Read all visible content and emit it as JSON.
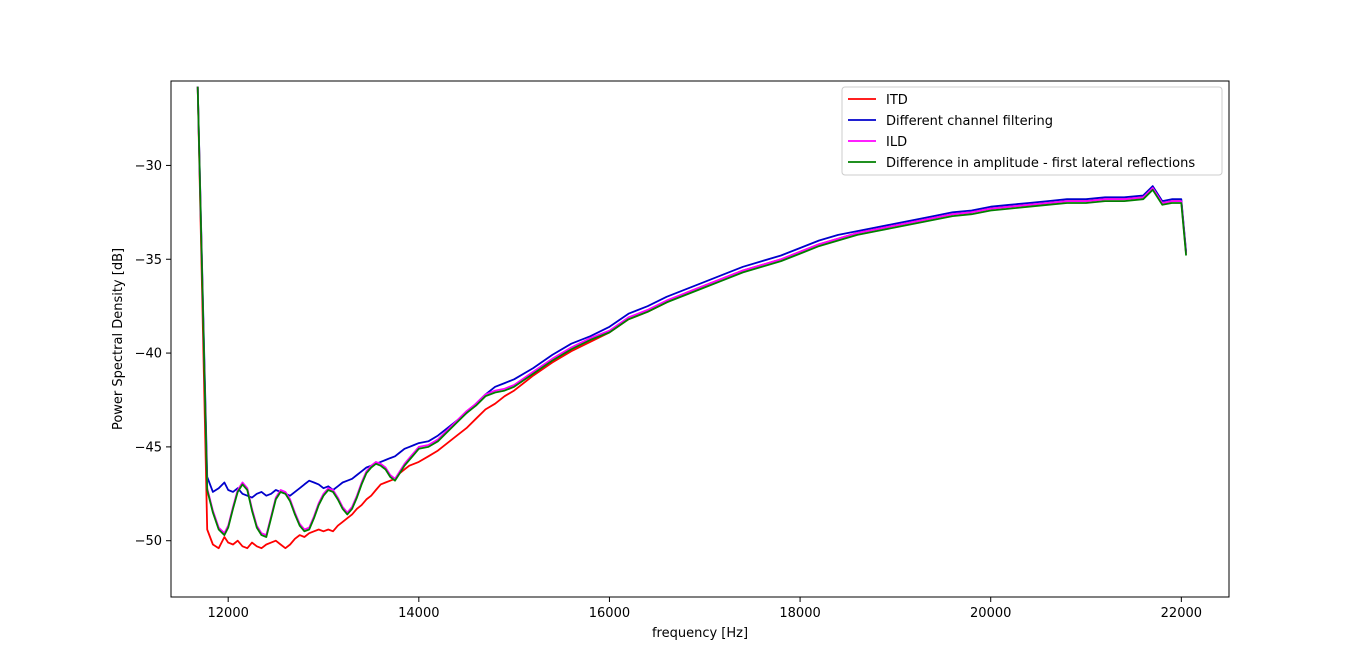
{
  "chart_data": {
    "type": "line",
    "title": "",
    "xlabel": "frequency [Hz]",
    "ylabel": "Power Spectral Density [dB]",
    "xlim": [
      11400,
      22500
    ],
    "ylim": [
      -53.0,
      -25.5
    ],
    "xticks": [
      12000,
      14000,
      16000,
      18000,
      20000,
      22000
    ],
    "yticks": [
      -50,
      -45,
      -40,
      -35,
      -30
    ],
    "xtick_labels": [
      "12000",
      "14000",
      "16000",
      "18000",
      "20000",
      "22000"
    ],
    "ytick_labels": [
      "−50",
      "−45",
      "−40",
      "−35",
      "−30"
    ],
    "grid": false,
    "legend_position": "top-right",
    "series": [
      {
        "name": "ITD",
        "color": "#ff0000",
        "x": [
          11680,
          11780,
          11840,
          11900,
          11960,
          12000,
          12050,
          12100,
          12150,
          12200,
          12250,
          12300,
          12350,
          12400,
          12450,
          12500,
          12550,
          12600,
          12650,
          12700,
          12750,
          12800,
          12850,
          12900,
          12950,
          13000,
          13050,
          13100,
          13150,
          13200,
          13250,
          13300,
          13350,
          13400,
          13450,
          13500,
          13550,
          13600,
          13650,
          13700,
          13750,
          13800,
          13850,
          13900,
          13950,
          14000,
          14100,
          14200,
          14300,
          14400,
          14500,
          14600,
          14700,
          14800,
          14900,
          15000,
          15200,
          15400,
          15600,
          15800,
          16000,
          16200,
          16400,
          16600,
          16800,
          17000,
          17200,
          17400,
          17600,
          17800,
          18000,
          18200,
          18400,
          18600,
          18800,
          19000,
          19200,
          19400,
          19600,
          19800,
          20000,
          20200,
          20400,
          20600,
          20800,
          21000,
          21200,
          21400,
          21600,
          21700,
          21800,
          21900,
          22000,
          22050
        ],
        "y": [
          -25.8,
          -49.4,
          -50.2,
          -50.4,
          -49.8,
          -50.1,
          -50.2,
          -50.0,
          -50.3,
          -50.4,
          -50.1,
          -50.3,
          -50.4,
          -50.2,
          -50.1,
          -50.0,
          -50.2,
          -50.4,
          -50.2,
          -49.9,
          -49.7,
          -49.8,
          -49.6,
          -49.5,
          -49.4,
          -49.5,
          -49.4,
          -49.5,
          -49.2,
          -49.0,
          -48.8,
          -48.6,
          -48.3,
          -48.1,
          -47.8,
          -47.6,
          -47.3,
          -47.0,
          -46.9,
          -46.8,
          -46.7,
          -46.4,
          -46.2,
          -46.0,
          -45.9,
          -45.8,
          -45.5,
          -45.2,
          -44.8,
          -44.4,
          -44.0,
          -43.5,
          -43.0,
          -42.7,
          -42.3,
          -42.0,
          -41.2,
          -40.5,
          -39.9,
          -39.4,
          -38.9,
          -38.2,
          -37.8,
          -37.3,
          -36.8,
          -36.4,
          -36.0,
          -35.6,
          -35.3,
          -35.0,
          -34.6,
          -34.2,
          -33.9,
          -33.6,
          -33.4,
          -33.2,
          -33.0,
          -32.8,
          -32.6,
          -32.5,
          -32.3,
          -32.2,
          -32.1,
          -32.0,
          -31.9,
          -31.9,
          -31.8,
          -31.8,
          -31.7,
          -31.2,
          -32.0,
          -31.9,
          -31.9,
          -34.7
        ]
      },
      {
        "name": "Different channel filtering",
        "color": "#0000cc",
        "x": [
          11680,
          11780,
          11840,
          11900,
          11960,
          12000,
          12050,
          12100,
          12150,
          12200,
          12250,
          12300,
          12350,
          12400,
          12450,
          12500,
          12550,
          12600,
          12650,
          12700,
          12750,
          12800,
          12850,
          12900,
          12950,
          13000,
          13050,
          13100,
          13150,
          13200,
          13250,
          13300,
          13350,
          13400,
          13450,
          13500,
          13550,
          13600,
          13650,
          13700,
          13750,
          13800,
          13850,
          13900,
          13950,
          14000,
          14100,
          14200,
          14300,
          14400,
          14500,
          14600,
          14700,
          14800,
          14900,
          15000,
          15200,
          15400,
          15600,
          15800,
          16000,
          16200,
          16400,
          16600,
          16800,
          17000,
          17200,
          17400,
          17600,
          17800,
          18000,
          18200,
          18400,
          18600,
          18800,
          19000,
          19200,
          19400,
          19600,
          19800,
          20000,
          20200,
          20400,
          20600,
          20800,
          21000,
          21200,
          21400,
          21600,
          21700,
          21800,
          21900,
          22000,
          22050
        ],
        "y": [
          -25.8,
          -46.6,
          -47.4,
          -47.2,
          -46.9,
          -47.3,
          -47.4,
          -47.2,
          -47.5,
          -47.6,
          -47.7,
          -47.5,
          -47.4,
          -47.6,
          -47.5,
          -47.3,
          -47.4,
          -47.5,
          -47.6,
          -47.4,
          -47.2,
          -47.0,
          -46.8,
          -46.9,
          -47.0,
          -47.2,
          -47.1,
          -47.3,
          -47.1,
          -46.9,
          -46.8,
          -46.7,
          -46.5,
          -46.3,
          -46.1,
          -46.0,
          -45.9,
          -45.8,
          -45.7,
          -45.6,
          -45.5,
          -45.3,
          -45.1,
          -45.0,
          -44.9,
          -44.8,
          -44.7,
          -44.4,
          -44.0,
          -43.6,
          -43.2,
          -42.7,
          -42.2,
          -41.8,
          -41.6,
          -41.4,
          -40.8,
          -40.1,
          -39.5,
          -39.1,
          -38.6,
          -37.9,
          -37.5,
          -37.0,
          -36.6,
          -36.2,
          -35.8,
          -35.4,
          -35.1,
          -34.8,
          -34.4,
          -34.0,
          -33.7,
          -33.5,
          -33.3,
          -33.1,
          -32.9,
          -32.7,
          -32.5,
          -32.4,
          -32.2,
          -32.1,
          -32.0,
          -31.9,
          -31.8,
          -31.8,
          -31.7,
          -31.7,
          -31.6,
          -31.1,
          -31.9,
          -31.8,
          -31.8,
          -34.6
        ]
      },
      {
        "name": "ILD",
        "color": "#ff00ff",
        "x": [
          11680,
          11780,
          11840,
          11900,
          11960,
          12000,
          12050,
          12100,
          12150,
          12200,
          12250,
          12300,
          12350,
          12400,
          12450,
          12500,
          12550,
          12600,
          12650,
          12700,
          12750,
          12800,
          12850,
          12900,
          12950,
          13000,
          13050,
          13100,
          13150,
          13200,
          13250,
          13300,
          13350,
          13400,
          13450,
          13500,
          13550,
          13600,
          13650,
          13700,
          13750,
          13800,
          13850,
          13900,
          13950,
          14000,
          14100,
          14200,
          14300,
          14400,
          14500,
          14600,
          14700,
          14800,
          14900,
          15000,
          15200,
          15400,
          15600,
          15800,
          16000,
          16200,
          16400,
          16600,
          16800,
          17000,
          17200,
          17400,
          17600,
          17800,
          18000,
          18200,
          18400,
          18600,
          18800,
          19000,
          19200,
          19400,
          19600,
          19800,
          20000,
          20200,
          20400,
          20600,
          20800,
          21000,
          21200,
          21400,
          21600,
          21700,
          21800,
          21900,
          22000,
          22050
        ],
        "y": [
          -25.8,
          -47.2,
          -48.4,
          -49.3,
          -49.6,
          -49.2,
          -48.2,
          -47.3,
          -46.9,
          -47.2,
          -48.3,
          -49.2,
          -49.6,
          -49.7,
          -48.7,
          -47.7,
          -47.3,
          -47.4,
          -47.8,
          -48.5,
          -49.1,
          -49.4,
          -49.3,
          -48.7,
          -48.0,
          -47.5,
          -47.2,
          -47.3,
          -47.7,
          -48.2,
          -48.5,
          -48.2,
          -47.6,
          -46.9,
          -46.3,
          -46.0,
          -45.8,
          -45.9,
          -46.1,
          -46.5,
          -46.7,
          -46.3,
          -45.9,
          -45.6,
          -45.3,
          -45.0,
          -44.9,
          -44.6,
          -44.1,
          -43.6,
          -43.1,
          -42.7,
          -42.2,
          -42.0,
          -41.9,
          -41.7,
          -41.0,
          -40.3,
          -39.7,
          -39.2,
          -38.8,
          -38.1,
          -37.7,
          -37.2,
          -36.8,
          -36.4,
          -36.0,
          -35.6,
          -35.3,
          -35.0,
          -34.6,
          -34.2,
          -33.9,
          -33.6,
          -33.4,
          -33.2,
          -33.0,
          -32.8,
          -32.6,
          -32.5,
          -32.3,
          -32.2,
          -32.1,
          -32.0,
          -31.9,
          -31.9,
          -31.8,
          -31.8,
          -31.7,
          -31.2,
          -32.0,
          -31.9,
          -31.9,
          -34.7
        ]
      },
      {
        "name": "Difference in amplitude - first lateral reflections",
        "color": "#008000",
        "x": [
          11680,
          11780,
          11840,
          11900,
          11960,
          12000,
          12050,
          12100,
          12150,
          12200,
          12250,
          12300,
          12350,
          12400,
          12450,
          12500,
          12550,
          12600,
          12650,
          12700,
          12750,
          12800,
          12850,
          12900,
          12950,
          13000,
          13050,
          13100,
          13150,
          13200,
          13250,
          13300,
          13350,
          13400,
          13450,
          13500,
          13550,
          13600,
          13650,
          13700,
          13750,
          13800,
          13850,
          13900,
          13950,
          14000,
          14100,
          14200,
          14300,
          14400,
          14500,
          14600,
          14700,
          14800,
          14900,
          15000,
          15200,
          15400,
          15600,
          15800,
          16000,
          16200,
          16400,
          16600,
          16800,
          17000,
          17200,
          17400,
          17600,
          17800,
          18000,
          18200,
          18400,
          18600,
          18800,
          19000,
          19200,
          19400,
          19600,
          19800,
          20000,
          20200,
          20400,
          20600,
          20800,
          21000,
          21200,
          21400,
          21600,
          21700,
          21800,
          21900,
          22000,
          22050
        ],
        "y": [
          -25.8,
          -47.3,
          -48.5,
          -49.4,
          -49.7,
          -49.3,
          -48.3,
          -47.4,
          -47.0,
          -47.3,
          -48.4,
          -49.3,
          -49.7,
          -49.8,
          -48.8,
          -47.8,
          -47.4,
          -47.5,
          -47.9,
          -48.6,
          -49.2,
          -49.5,
          -49.4,
          -48.8,
          -48.1,
          -47.6,
          -47.3,
          -47.4,
          -47.8,
          -48.3,
          -48.6,
          -48.3,
          -47.7,
          -47.0,
          -46.4,
          -46.1,
          -45.9,
          -46.0,
          -46.2,
          -46.6,
          -46.8,
          -46.4,
          -46.0,
          -45.7,
          -45.4,
          -45.1,
          -45.0,
          -44.7,
          -44.2,
          -43.7,
          -43.2,
          -42.8,
          -42.3,
          -42.1,
          -42.0,
          -41.8,
          -41.1,
          -40.4,
          -39.8,
          -39.3,
          -38.9,
          -38.2,
          -37.8,
          -37.3,
          -36.9,
          -36.5,
          -36.1,
          -35.7,
          -35.4,
          -35.1,
          -34.7,
          -34.3,
          -34.0,
          -33.7,
          -33.5,
          -33.3,
          -33.1,
          -32.9,
          -32.7,
          -32.6,
          -32.4,
          -32.3,
          -32.2,
          -32.1,
          -32.0,
          -32.0,
          -31.9,
          -31.9,
          -31.8,
          -31.3,
          -32.1,
          -32.0,
          -32.0,
          -34.8
        ]
      }
    ]
  }
}
